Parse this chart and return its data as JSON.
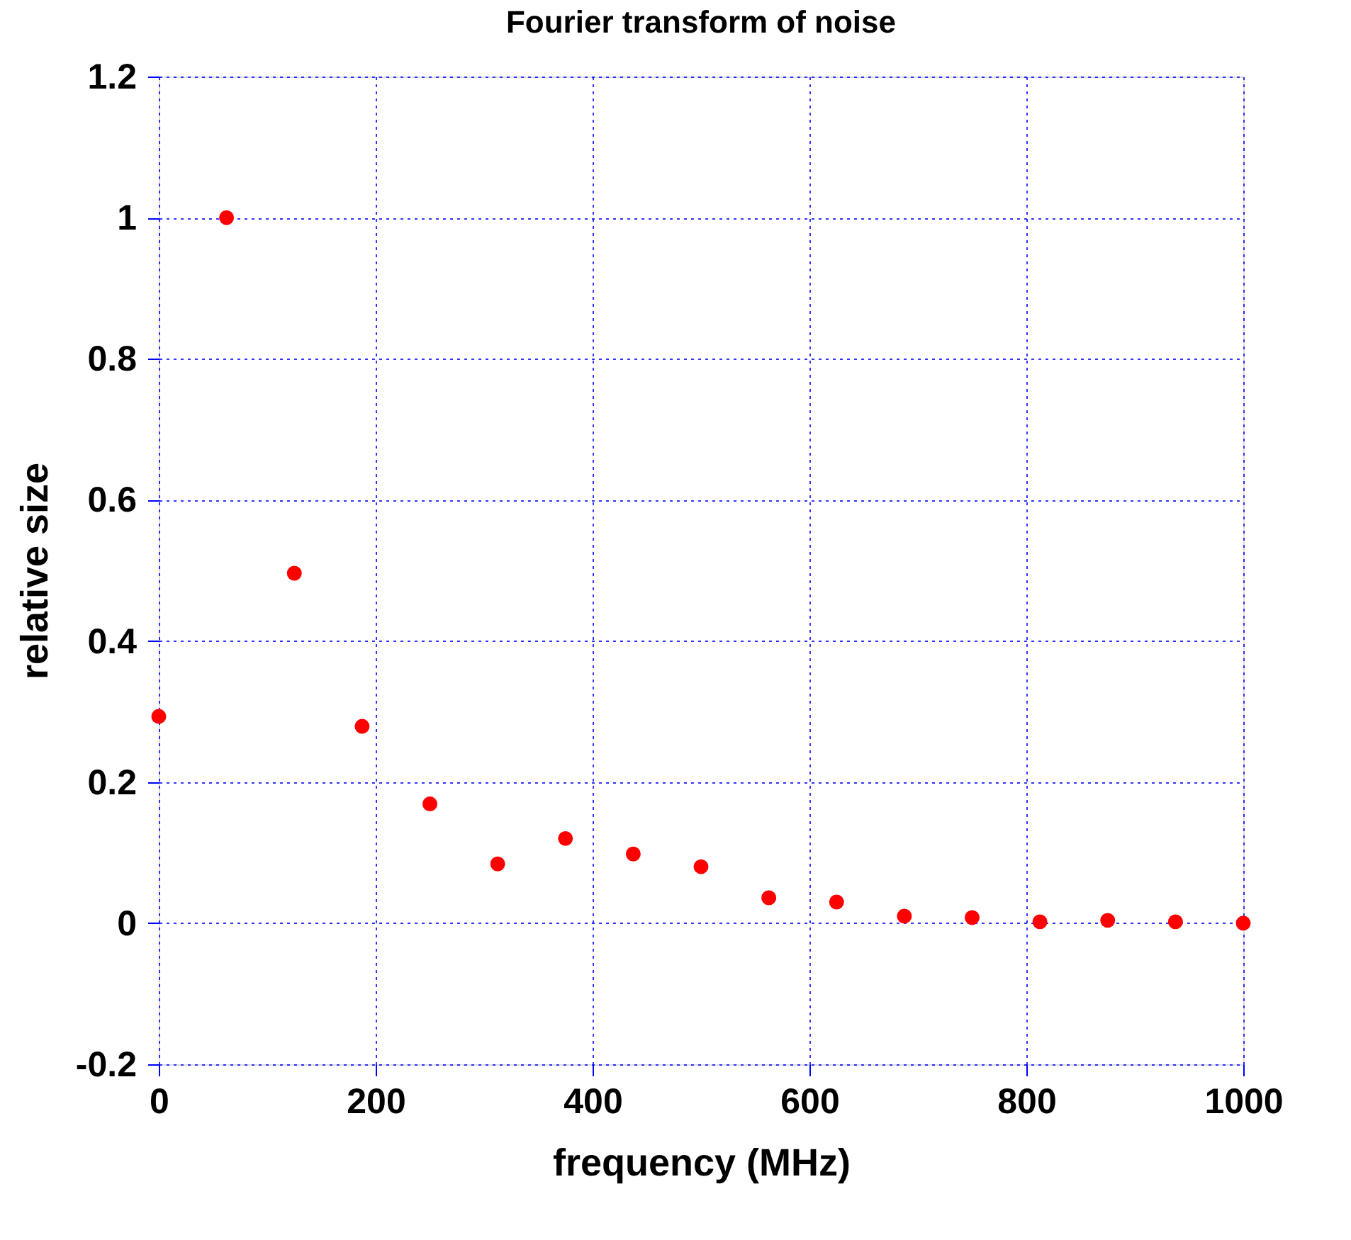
{
  "chart_data": {
    "type": "scatter",
    "title": "Fourier transform of noise",
    "xlabel": "frequency (MHz)",
    "ylabel": "relative size",
    "x": [
      0,
      62.5,
      125,
      187.5,
      250,
      312.5,
      375,
      437.5,
      500,
      562.5,
      625,
      687.5,
      750,
      812.5,
      875,
      937.5,
      1000
    ],
    "series": [
      {
        "color": "#ff0000",
        "values": [
          0.293,
          1.0,
          0.496,
          0.279,
          0.169,
          0.084,
          0.12,
          0.098,
          0.08,
          0.036,
          0.03,
          0.01,
          0.008,
          0.002,
          0.004,
          0.002,
          0.0
        ]
      }
    ],
    "xlim": [
      0,
      1000
    ],
    "xticks": [
      0,
      200,
      400,
      600,
      800,
      1000
    ],
    "ylim": [
      -0.2,
      1.2
    ],
    "yticks": [
      -0.2,
      0,
      0.2,
      0.4,
      0.6,
      0.8,
      1,
      1.2
    ],
    "grid": true,
    "marker": "circle",
    "legend": false
  }
}
